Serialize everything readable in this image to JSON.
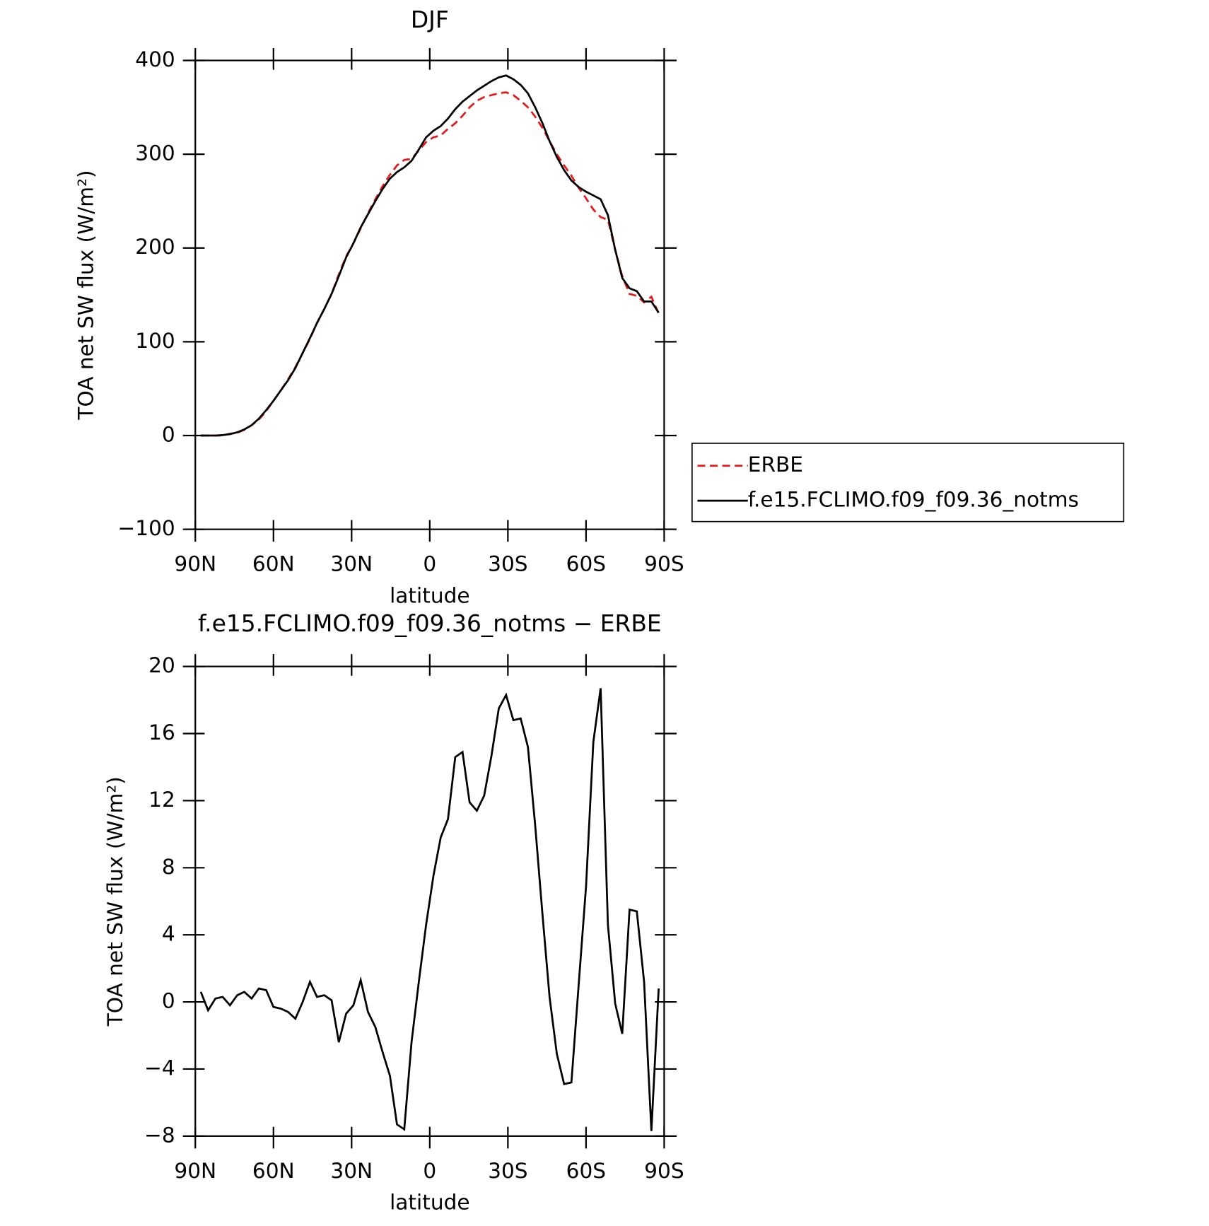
{
  "chart_data": [
    {
      "type": "line",
      "title": "DJF",
      "xlabel": "latitude",
      "ylabel": "TOA net SW flux (W/m²)",
      "x": [
        87.9,
        85.1,
        82.3,
        79.5,
        76.7,
        73.9,
        71.2,
        68.4,
        65.6,
        62.8,
        60.0,
        57.2,
        54.4,
        51.6,
        48.8,
        46.0,
        43.3,
        40.5,
        37.7,
        34.9,
        32.1,
        29.3,
        26.5,
        23.7,
        20.9,
        18.1,
        15.3,
        12.6,
        9.8,
        7.0,
        4.2,
        1.4,
        -1.4,
        -4.2,
        -7.0,
        -9.8,
        -12.6,
        -15.3,
        -18.1,
        -20.9,
        -23.7,
        -26.5,
        -29.3,
        -32.1,
        -34.9,
        -37.7,
        -40.5,
        -43.3,
        -46.0,
        -48.8,
        -51.6,
        -54.4,
        -57.2,
        -60.0,
        -62.8,
        -65.6,
        -68.4,
        -71.2,
        -73.9,
        -76.7,
        -79.5,
        -82.3,
        -85.1,
        -87.9
      ],
      "series": [
        {
          "name": "ERBE",
          "color": "#e41a1c",
          "dash": true,
          "values": [
            0,
            0,
            0,
            0,
            2,
            3,
            6,
            11,
            17,
            26,
            37,
            48,
            60,
            73,
            88,
            103,
            120,
            135,
            151,
            172,
            191,
            205,
            221,
            237,
            252,
            266,
            278,
            288,
            294,
            295,
            304,
            313,
            318,
            320,
            327,
            333,
            341,
            350,
            357,
            361,
            363,
            365,
            366,
            363,
            357,
            350,
            340,
            328,
            314,
            300,
            288,
            277,
            264,
            253,
            241,
            233,
            230,
            198,
            170,
            151,
            149,
            142,
            148,
            130
          ]
        },
        {
          "name": "f.e15.FCLIMO.f09_f09.36_notms",
          "color": "#000000",
          "dash": false,
          "values": [
            0,
            0,
            0,
            0.5,
            1.5,
            3.5,
            6.5,
            11,
            18,
            27,
            37,
            48,
            59,
            72,
            88,
            104,
            120,
            135,
            151,
            170,
            190,
            205,
            222,
            236,
            250,
            263,
            274,
            281,
            286,
            293,
            305,
            318,
            325,
            330,
            338,
            348,
            356,
            362,
            368,
            373,
            378,
            382,
            384,
            380,
            374,
            365,
            350,
            333,
            314,
            297,
            283,
            272,
            265,
            260,
            256,
            252,
            235,
            198,
            168,
            157,
            154,
            143,
            143,
            131
          ]
        }
      ],
      "xlim": [
        90,
        -90
      ],
      "xticks": [
        {
          "value": 90,
          "label": "90N"
        },
        {
          "value": 60,
          "label": "60N"
        },
        {
          "value": 30,
          "label": "30N"
        },
        0,
        {
          "value": -30,
          "label": "30S"
        },
        {
          "value": -60,
          "label": "60S"
        },
        {
          "value": -90,
          "label": "90S"
        }
      ],
      "ylim": [
        -100,
        400
      ],
      "yticks": [
        {
          "value": -100,
          "label": "−100"
        },
        0,
        100,
        200,
        300,
        400
      ],
      "legend": "right"
    },
    {
      "type": "line",
      "title": "f.e15.FCLIMO.f09_f09.36_notms − ERBE",
      "xlabel": "latitude",
      "ylabel": "TOA net SW flux (W/m²)",
      "x": [
        87.9,
        85.1,
        82.3,
        79.5,
        76.7,
        73.9,
        71.2,
        68.4,
        65.6,
        62.8,
        60.0,
        57.2,
        54.4,
        51.6,
        48.8,
        46.0,
        43.3,
        40.5,
        37.7,
        34.9,
        32.1,
        29.3,
        26.5,
        23.7,
        20.9,
        18.1,
        15.3,
        12.6,
        9.8,
        7.0,
        4.2,
        1.4,
        -1.4,
        -4.2,
        -7.0,
        -9.8,
        -12.6,
        -15.3,
        -18.1,
        -20.9,
        -23.7,
        -26.5,
        -29.3,
        -32.1,
        -34.9,
        -37.7,
        -40.5,
        -43.3,
        -46.0,
        -48.8,
        -51.6,
        -54.4,
        -57.2,
        -60.0,
        -62.8,
        -65.6,
        -68.4,
        -71.2,
        -73.9,
        -76.7,
        -79.5,
        -82.3,
        -85.1,
        -87.9
      ],
      "series": [
        {
          "color": "#000000",
          "dash": false,
          "values": [
            0.6,
            -0.5,
            0.2,
            0.3,
            -0.2,
            0.4,
            0.6,
            0.2,
            0.8,
            0.7,
            -0.3,
            -0.4,
            -0.6,
            -1.0,
            0.0,
            1.2,
            0.3,
            0.4,
            0.1,
            -2.4,
            -0.7,
            -0.2,
            1.3,
            -0.6,
            -1.5,
            -3.0,
            -4.4,
            -7.3,
            -7.6,
            -2.4,
            1.2,
            4.6,
            7.5,
            9.8,
            10.9,
            14.6,
            14.9,
            11.9,
            11.4,
            12.3,
            14.7,
            17.5,
            18.3,
            16.8,
            16.9,
            15.2,
            10.5,
            5.2,
            0.3,
            -3.1,
            -4.9,
            -4.8,
            1.1,
            6.9,
            15.5,
            18.7,
            4.6,
            -0.1,
            -1.9,
            5.5,
            5.4,
            1.2,
            -7.7,
            0.8
          ]
        }
      ],
      "xlim": [
        90,
        -90
      ],
      "xticks": [
        {
          "value": 90,
          "label": "90N"
        },
        {
          "value": 60,
          "label": "60N"
        },
        {
          "value": 30,
          "label": "30N"
        },
        0,
        {
          "value": -30,
          "label": "30S"
        },
        {
          "value": -60,
          "label": "60S"
        },
        {
          "value": -90,
          "label": "90S"
        }
      ],
      "ylim": [
        -8,
        20
      ],
      "yticks": [
        {
          "value": -8,
          "label": "−8"
        },
        {
          "value": -4,
          "label": "−4"
        },
        0,
        4,
        8,
        12,
        16,
        20
      ]
    }
  ]
}
